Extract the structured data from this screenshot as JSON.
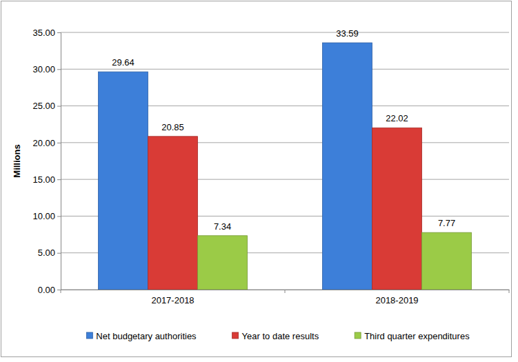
{
  "chart_data": {
    "type": "bar",
    "y_label": "Millions",
    "categories": [
      "2017-2018",
      "2018-2019"
    ],
    "series": [
      {
        "name": "Net budgetary authorities",
        "color": "#3d7fd9",
        "values": [
          29.64,
          33.59
        ]
      },
      {
        "name": "Year to date results",
        "color": "#d93b36",
        "values": [
          20.85,
          22.02
        ]
      },
      {
        "name": "Third quarter expenditures",
        "color": "#9bcb47",
        "values": [
          7.34,
          7.77
        ]
      }
    ],
    "ylim": [
      0,
      35
    ],
    "yticks": [
      {
        "value": 0,
        "label": "0.00"
      },
      {
        "value": 5,
        "label": "5.00"
      },
      {
        "value": 10,
        "label": "10.00"
      },
      {
        "value": 15,
        "label": "15.00"
      },
      {
        "value": 20,
        "label": "20.00"
      },
      {
        "value": 25,
        "label": "25.00"
      },
      {
        "value": 30,
        "label": "30.00"
      },
      {
        "value": 35,
        "label": "35.00"
      }
    ],
    "grid": true,
    "legend": "bottom",
    "data_labels": true
  }
}
